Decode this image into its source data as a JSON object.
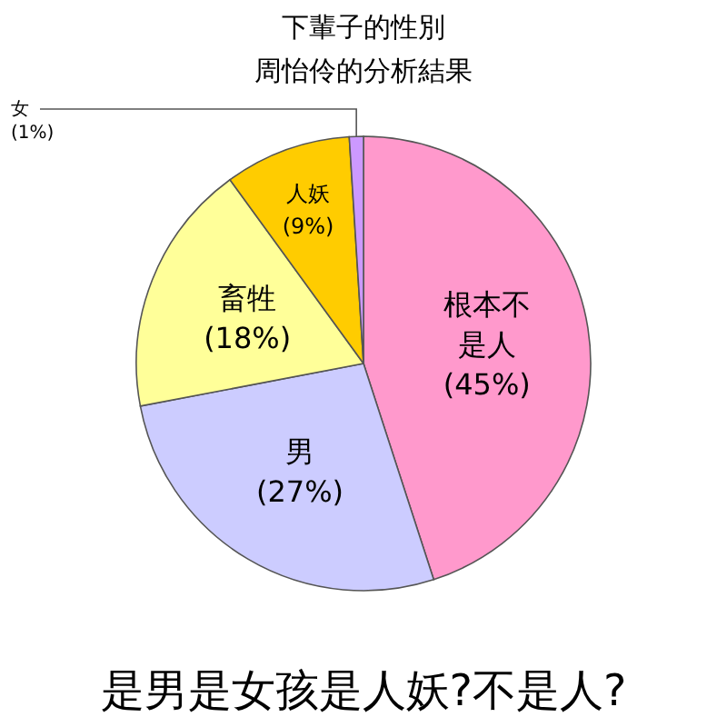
{
  "chart_data": {
    "type": "pie",
    "title": "下輩子的性別",
    "subtitle": "周怡伶的分析結果",
    "categories": [
      "根本不是人",
      "男",
      "畜牲",
      "人妖",
      "女"
    ],
    "values": [
      45,
      27,
      18,
      9,
      1
    ],
    "colors": [
      "#ff99cc",
      "#ccccff",
      "#ffff99",
      "#ffcc00",
      "#cc99ff"
    ],
    "value_labels": [
      "(45%)",
      "(27%)",
      "(18%)",
      "(9%)",
      "(1%)"
    ],
    "annotations": [
      "是男是女孩是人妖?不是人?"
    ]
  }
}
